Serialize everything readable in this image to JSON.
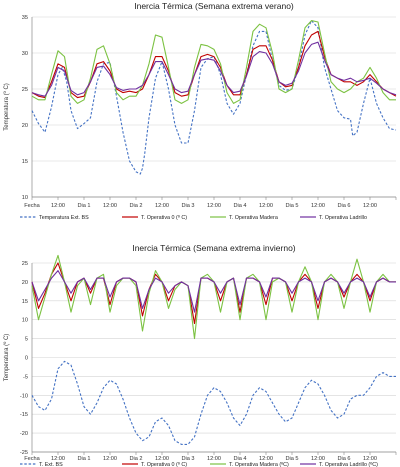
{
  "chart_data": [
    {
      "type": "line",
      "title": "Inercia Térmica (Semana extrema verano)",
      "ylabel": "Temperatura (º C)",
      "xlabel": "",
      "ylim": [
        10,
        35
      ],
      "yticks": [
        10,
        15,
        20,
        25,
        30,
        35
      ],
      "grid": "horizontal",
      "legend_position": "bottom",
      "x_tick_labels": [
        "Fecha",
        "12:00",
        "Dia 1",
        "12:00",
        "Dia 2",
        "12:00",
        "Dia 3",
        "12:00",
        "Dia 4",
        "12:00",
        "Dia 5",
        "12:00",
        "Dia 6",
        "12:00",
        ""
      ],
      "x_hours": [
        0,
        12,
        24,
        36,
        48,
        60,
        72,
        84,
        96,
        108,
        120,
        132,
        144,
        156,
        168
      ],
      "series": [
        {
          "name": "Temperatura Ext. BS",
          "color": "#4472c4",
          "dash": true,
          "x": [
            0,
            3,
            6,
            9,
            12,
            14,
            16,
            18,
            21,
            24,
            27,
            30,
            33,
            36,
            39,
            42,
            45,
            48,
            50,
            51,
            52,
            54,
            57,
            60,
            63,
            66,
            69,
            72,
            75,
            78,
            81,
            84,
            87,
            90,
            93,
            96,
            99,
            102,
            105,
            108,
            111,
            114,
            117,
            120,
            123,
            126,
            129,
            132,
            135,
            138,
            141,
            144,
            147,
            148,
            150,
            153,
            156,
            159,
            162,
            165,
            168
          ],
          "y": [
            22,
            20.2,
            19,
            22.5,
            27,
            28,
            26,
            22,
            19.5,
            20.2,
            21,
            26,
            28.5,
            28.7,
            24,
            19,
            15,
            13.5,
            13.2,
            14,
            16,
            21,
            26.5,
            28.8,
            25,
            20,
            17.5,
            17.5,
            22,
            28,
            29.2,
            29.5,
            27,
            23,
            21.5,
            23,
            27,
            31,
            33,
            33,
            29,
            25.5,
            24.8,
            25,
            28,
            32.5,
            34.5,
            33.5,
            28,
            25,
            22,
            21,
            20.8,
            18.5,
            19,
            23,
            26.5,
            23,
            21,
            19.5,
            19.3
          ]
        },
        {
          "name": "T. Operativa 0 (º C)",
          "color": "#c00000",
          "dash": false,
          "x": [
            0,
            3,
            6,
            9,
            12,
            15,
            18,
            21,
            24,
            27,
            30,
            33,
            36,
            39,
            42,
            45,
            48,
            51,
            54,
            57,
            60,
            63,
            66,
            69,
            72,
            75,
            78,
            81,
            84,
            87,
            90,
            93,
            96,
            99,
            102,
            105,
            108,
            111,
            114,
            117,
            120,
            123,
            126,
            129,
            132,
            135,
            138,
            141,
            144,
            147,
            150,
            153,
            156,
            159,
            162,
            165,
            168
          ],
          "y": [
            24.5,
            24,
            23.8,
            26,
            28.5,
            28,
            24.5,
            23.8,
            24,
            26,
            28.5,
            28.8,
            27.5,
            25,
            24.5,
            24.7,
            24.5,
            25,
            27,
            29.5,
            29.5,
            27.5,
            24.5,
            24,
            24.2,
            27,
            29.5,
            29.8,
            29.5,
            28,
            25.5,
            24.2,
            24.2,
            27,
            30.5,
            31,
            31,
            29,
            26,
            25.3,
            25.5,
            28,
            31,
            32.5,
            33,
            29.5,
            27,
            26.5,
            26,
            26,
            25.5,
            26,
            27,
            26,
            25,
            24.5,
            24
          ]
        },
        {
          "name": "T. Operativa Madera",
          "color": "#7cc242",
          "dash": false,
          "x": [
            0,
            3,
            6,
            9,
            12,
            15,
            18,
            21,
            24,
            27,
            30,
            33,
            36,
            39,
            42,
            45,
            48,
            51,
            54,
            57,
            60,
            63,
            66,
            69,
            72,
            75,
            78,
            81,
            84,
            87,
            90,
            93,
            96,
            99,
            102,
            105,
            108,
            111,
            114,
            117,
            120,
            123,
            126,
            129,
            132,
            135,
            138,
            141,
            144,
            147,
            150,
            153,
            156,
            159,
            162,
            165,
            168
          ],
          "y": [
            24,
            23.5,
            23.5,
            27,
            30.3,
            29.5,
            24,
            23,
            23.5,
            26.5,
            30.5,
            31,
            28.5,
            24.5,
            23.5,
            24,
            24,
            25.5,
            28.5,
            32.5,
            32.2,
            28,
            23.5,
            23,
            23.5,
            28,
            31.2,
            31,
            30.5,
            28.5,
            24.5,
            23,
            23.5,
            28,
            33,
            34,
            33.5,
            30,
            25,
            24.5,
            25,
            29,
            33.5,
            34.5,
            34.3,
            30,
            26,
            25,
            24.5,
            25,
            26,
            26.5,
            28,
            26.5,
            24.5,
            23.5,
            23.5
          ]
        },
        {
          "name": "T. Operativa Ladrillo",
          "color": "#7030a0",
          "dash": false,
          "x": [
            0,
            3,
            6,
            9,
            12,
            15,
            18,
            21,
            24,
            27,
            30,
            33,
            36,
            39,
            42,
            45,
            48,
            51,
            54,
            57,
            60,
            63,
            66,
            69,
            72,
            75,
            78,
            81,
            84,
            87,
            90,
            93,
            96,
            99,
            102,
            105,
            108,
            111,
            114,
            117,
            120,
            123,
            126,
            129,
            132,
            135,
            138,
            141,
            144,
            147,
            150,
            153,
            156,
            159,
            162,
            165,
            168
          ],
          "y": [
            24.5,
            24.2,
            24,
            25.5,
            28,
            27.5,
            24.8,
            24.2,
            24.5,
            26,
            28,
            28.2,
            27,
            25.2,
            24.8,
            25,
            25,
            25.5,
            27,
            28.8,
            28.8,
            27,
            25,
            24.5,
            24.7,
            27,
            29,
            29.2,
            29,
            27.5,
            25.5,
            24.5,
            24.7,
            26.8,
            29.5,
            30.2,
            30,
            28.5,
            26,
            25.5,
            25.8,
            27.5,
            30,
            31.2,
            31.5,
            29,
            27,
            26.5,
            26.2,
            26.5,
            26,
            26.2,
            26.5,
            25.8,
            25,
            24.5,
            24.2
          ]
        }
      ]
    },
    {
      "type": "line",
      "title": "Inercia Térmica (Semana extrema invierno)",
      "ylabel": "Temperatura (º C)",
      "xlabel": "",
      "ylim": [
        -25,
        25
      ],
      "yticks": [
        -25,
        -20,
        -15,
        -10,
        -5,
        0,
        5,
        10,
        15,
        20,
        25
      ],
      "grid": "horizontal",
      "legend_position": "bottom",
      "x_tick_labels": [
        "Fecha",
        "12:00",
        "Dia 1",
        "12:00",
        "Dia 2",
        "12:00",
        "Dia 3",
        "12:00",
        "Dia 4",
        "12:00",
        "Dia 5",
        "12:00",
        "Dia 6",
        "12:00",
        ""
      ],
      "x_hours": [
        0,
        12,
        24,
        36,
        48,
        60,
        72,
        84,
        96,
        108,
        120,
        132,
        144,
        156,
        168
      ],
      "series": [
        {
          "name": "T. Ext. BS",
          "color": "#4472c4",
          "dash": true,
          "x": [
            0,
            3,
            6,
            9,
            12,
            15,
            18,
            21,
            24,
            27,
            30,
            33,
            36,
            39,
            42,
            45,
            48,
            51,
            54,
            57,
            60,
            63,
            66,
            69,
            72,
            75,
            78,
            81,
            84,
            87,
            90,
            93,
            96,
            99,
            102,
            105,
            108,
            111,
            114,
            117,
            120,
            123,
            126,
            129,
            132,
            135,
            138,
            141,
            144,
            147,
            150,
            153,
            156,
            159,
            162,
            165,
            168
          ],
          "y": [
            -10,
            -13,
            -14,
            -11,
            -3,
            -1,
            -2,
            -7,
            -13,
            -15,
            -12,
            -8,
            -6,
            -7,
            -11,
            -16,
            -20,
            -22,
            -21,
            -17,
            -16,
            -18,
            -22,
            -23,
            -23,
            -21,
            -15,
            -10,
            -8,
            -9,
            -12,
            -16,
            -18,
            -15,
            -10,
            -8,
            -9,
            -12,
            -15,
            -17,
            -16,
            -12,
            -8,
            -6,
            -7,
            -10,
            -14,
            -16,
            -15,
            -11,
            -10,
            -10,
            -8,
            -5,
            -4,
            -5,
            -5
          ]
        },
        {
          "name": "T. Operativa 0 (º C)",
          "color": "#c00000",
          "dash": false,
          "x": [
            0,
            3,
            6,
            9,
            12,
            15,
            18,
            21,
            24,
            27,
            30,
            33,
            36,
            39,
            42,
            45,
            48,
            51,
            54,
            57,
            60,
            63,
            66,
            69,
            72,
            75,
            78,
            81,
            84,
            87,
            90,
            93,
            96,
            99,
            102,
            105,
            108,
            111,
            114,
            117,
            120,
            123,
            126,
            129,
            132,
            135,
            138,
            141,
            144,
            147,
            150,
            153,
            156,
            159,
            162,
            165,
            168
          ],
          "y": [
            20,
            13,
            17,
            22,
            25,
            20,
            15,
            20,
            21,
            17,
            21,
            21,
            14,
            20,
            21,
            21,
            20,
            11,
            18,
            22,
            20,
            15,
            19,
            20,
            19,
            9,
            21,
            21,
            20,
            15,
            20,
            21,
            12,
            21,
            21,
            20,
            14,
            21,
            21,
            20,
            15,
            20,
            22,
            20,
            13,
            20,
            21,
            20,
            16,
            20,
            22,
            20,
            15,
            20,
            21,
            20,
            20
          ]
        },
        {
          "name": "T. Operativa Madera (ºC)",
          "color": "#7cc242",
          "dash": false,
          "x": [
            0,
            3,
            6,
            9,
            12,
            15,
            18,
            21,
            24,
            27,
            30,
            33,
            36,
            39,
            42,
            45,
            48,
            51,
            54,
            57,
            60,
            63,
            66,
            69,
            72,
            75,
            78,
            81,
            84,
            87,
            90,
            93,
            96,
            99,
            102,
            105,
            108,
            111,
            114,
            117,
            120,
            123,
            126,
            129,
            132,
            135,
            138,
            141,
            144,
            147,
            150,
            153,
            156,
            159,
            162,
            165,
            168
          ],
          "y": [
            19,
            10,
            16,
            22,
            27,
            20,
            12,
            19,
            21,
            14,
            21,
            22,
            12,
            19,
            21,
            21,
            19,
            7,
            17,
            23,
            20,
            13,
            18,
            20,
            19,
            5,
            21,
            22,
            20,
            12,
            20,
            21,
            10,
            21,
            22,
            20,
            10,
            20,
            21,
            20,
            12,
            20,
            24,
            20,
            10,
            20,
            22,
            20,
            13,
            20,
            26,
            20,
            12,
            20,
            22,
            20,
            20
          ]
        },
        {
          "name": "T. Operativa Ladrillo (ºC)",
          "color": "#7030a0",
          "dash": false,
          "x": [
            0,
            3,
            6,
            9,
            12,
            15,
            18,
            21,
            24,
            27,
            30,
            33,
            36,
            39,
            42,
            45,
            48,
            51,
            54,
            57,
            60,
            63,
            66,
            69,
            72,
            75,
            78,
            81,
            84,
            87,
            90,
            93,
            96,
            99,
            102,
            105,
            108,
            111,
            114,
            117,
            120,
            123,
            126,
            129,
            132,
            135,
            138,
            141,
            144,
            147,
            150,
            153,
            156,
            159,
            162,
            165,
            168
          ],
          "y": [
            20,
            15,
            18,
            21,
            23,
            20,
            17,
            20,
            21,
            18,
            21,
            21,
            16,
            20,
            21,
            21,
            20,
            13,
            18,
            21,
            20,
            17,
            19,
            20,
            19,
            12,
            21,
            21,
            20,
            17,
            20,
            21,
            14,
            21,
            21,
            20,
            16,
            21,
            21,
            20,
            17,
            20,
            21,
            20,
            15,
            20,
            21,
            20,
            17,
            20,
            21,
            20,
            16,
            20,
            21,
            20,
            20
          ]
        }
      ]
    }
  ]
}
